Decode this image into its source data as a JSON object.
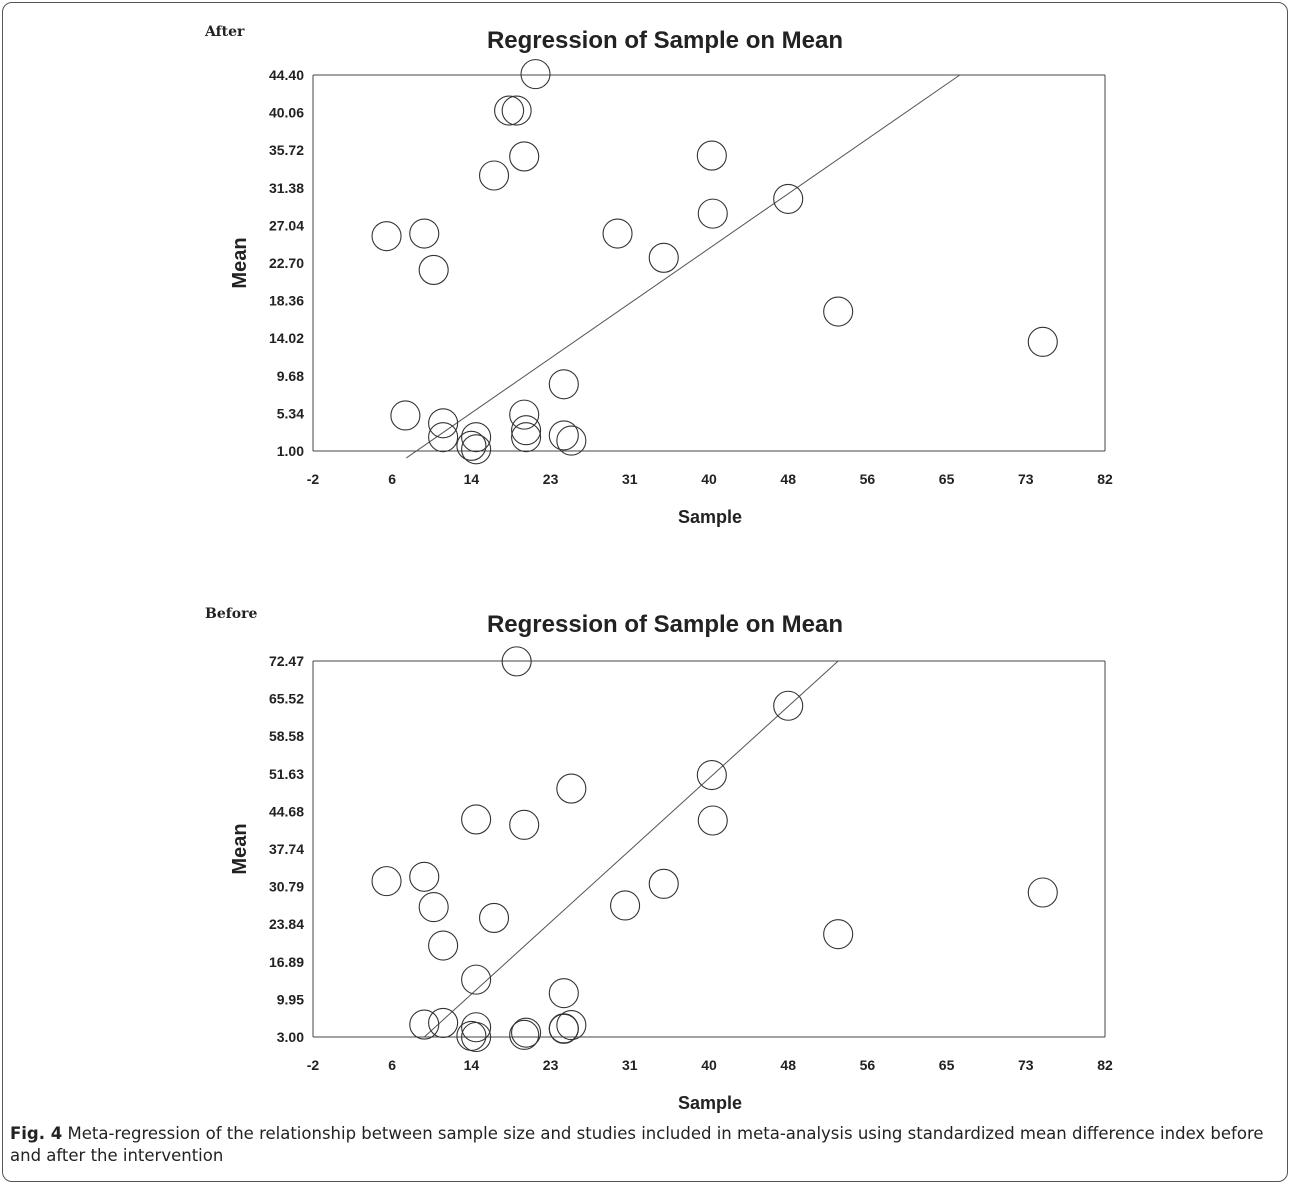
{
  "chart_data": [
    {
      "type": "scatter",
      "panel_label": "After",
      "title": "Regression of Sample on Mean",
      "xlabel": "Sample",
      "ylabel": "Mean",
      "xlim": [
        -2,
        82
      ],
      "ylim": [
        1.0,
        44.4
      ],
      "x_ticks": [
        "-2",
        "6",
        "14",
        "23",
        "31",
        "40",
        "48",
        "56",
        "65",
        "73",
        "82"
      ],
      "y_ticks": [
        "1.00",
        "5.34",
        "9.68",
        "14.02",
        "18.36",
        "22.70",
        "27.04",
        "31.38",
        "35.72",
        "40.06",
        "44.40"
      ],
      "grid": false,
      "legend": "none",
      "regression_line": {
        "x": [
          7.9,
          66.6
        ],
        "y": [
          0.2,
          44.4
        ]
      },
      "points": {
        "x": [
          5.8,
          9.8,
          10.8,
          7.8,
          11.8,
          11.8,
          15.3,
          14.8,
          15.3,
          18.8,
          17.2,
          20.4,
          19.6,
          21.6,
          20.4,
          20.6,
          20.6,
          24.6,
          25.4,
          24.6,
          30.3,
          35.2,
          40.3,
          40.4,
          48.4,
          53.7,
          75.4
        ],
        "y": [
          25.8,
          26.1,
          21.9,
          5.1,
          4.2,
          2.6,
          2.6,
          1.6,
          1.2,
          40.3,
          32.8,
          35.0,
          40.3,
          44.5,
          5.2,
          3.4,
          2.6,
          2.8,
          2.2,
          8.7,
          26.1,
          23.3,
          35.1,
          28.4,
          30.1,
          17.1,
          13.6
        ]
      }
    },
    {
      "type": "scatter",
      "panel_label": "Before",
      "title": "Regression of Sample on Mean",
      "xlabel": "Sample",
      "ylabel": "Mean",
      "xlim": [
        -2,
        82
      ],
      "ylim": [
        3.0,
        72.47
      ],
      "x_ticks": [
        "-2",
        "6",
        "14",
        "23",
        "31",
        "40",
        "48",
        "56",
        "65",
        "73",
        "82"
      ],
      "y_ticks": [
        "3.00",
        "9.95",
        "16.89",
        "23.84",
        "30.79",
        "37.74",
        "44.68",
        "51.63",
        "58.58",
        "65.52",
        "72.47"
      ],
      "grid": false,
      "legend": "none",
      "regression_line": {
        "x": [
          9.8,
          53.7
        ],
        "y": [
          3.0,
          72.47
        ]
      },
      "points": {
        "x": [
          5.8,
          9.8,
          10.8,
          11.8,
          9.8,
          11.8,
          14.8,
          15.3,
          15.3,
          15.3,
          15.3,
          17.2,
          19.6,
          20.4,
          20.4,
          20.6,
          24.6,
          24.6,
          24.6,
          25.4,
          25.4,
          31.1,
          35.2,
          40.3,
          40.4,
          48.4,
          53.7,
          75.4
        ],
        "y": [
          31.8,
          32.6,
          27.0,
          19.9,
          5.3,
          5.6,
          3.2,
          3.0,
          4.8,
          13.6,
          43.2,
          25.0,
          72.4,
          42.2,
          3.4,
          3.8,
          4.5,
          4.6,
          11.1,
          48.9,
          5.2,
          27.3,
          31.3,
          51.4,
          43.0,
          64.2,
          22.0,
          29.7
        ]
      }
    }
  ],
  "caption": {
    "label": "Fig. 4",
    "text": " Meta-regression of the relationship between sample size and studies included in meta-analysis using standardized mean difference index before and after the intervention"
  }
}
